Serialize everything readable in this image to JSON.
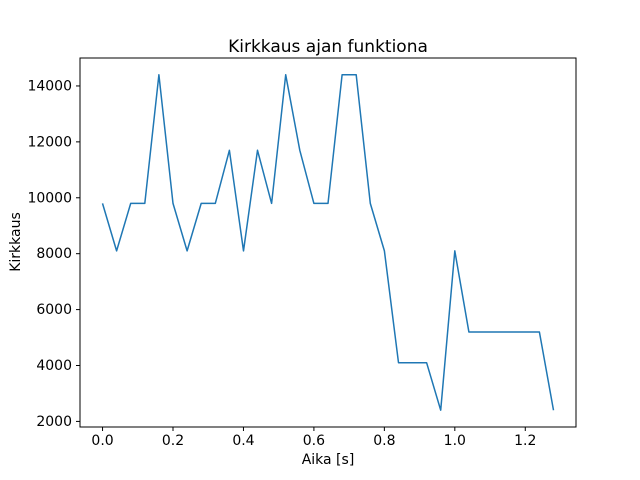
{
  "chart_data": {
    "type": "line",
    "title": "Kirkkaus ajan funktiona",
    "xlabel": "Aika [s]",
    "ylabel": "Kirkkaus",
    "x": [
      0.0,
      0.04,
      0.08,
      0.12,
      0.16,
      0.2,
      0.24,
      0.28,
      0.32,
      0.36,
      0.4,
      0.44,
      0.48,
      0.52,
      0.56,
      0.6,
      0.64,
      0.68,
      0.72,
      0.76,
      0.8,
      0.84,
      0.88,
      0.92,
      0.96,
      1.0,
      1.04,
      1.08,
      1.12,
      1.16,
      1.2,
      1.24,
      1.28
    ],
    "y": [
      9800,
      8100,
      9800,
      9800,
      14400,
      9800,
      8100,
      9800,
      9800,
      11700,
      8100,
      11700,
      9800,
      14400,
      11700,
      9800,
      9800,
      14400,
      14400,
      9800,
      8100,
      4100,
      4100,
      4100,
      2400,
      8100,
      5200,
      5200,
      5200,
      5200,
      5200,
      5200,
      2400
    ],
    "xticks": [
      0.0,
      0.2,
      0.4,
      0.6,
      0.8,
      1.0,
      1.2
    ],
    "xtick_labels": [
      "0.0",
      "0.2",
      "0.4",
      "0.6",
      "0.8",
      "1.0",
      "1.2"
    ],
    "yticks": [
      2000,
      4000,
      6000,
      8000,
      10000,
      12000,
      14000
    ],
    "ytick_labels": [
      "2000",
      "4000",
      "6000",
      "8000",
      "10000",
      "12000",
      "14000"
    ],
    "xlim": [
      -0.064,
      1.344
    ],
    "ylim": [
      1800,
      15000
    ],
    "line_color": "#1f77b4",
    "axis_color": "#000000",
    "background_color": "#ffffff",
    "grid": false,
    "legend": null
  }
}
